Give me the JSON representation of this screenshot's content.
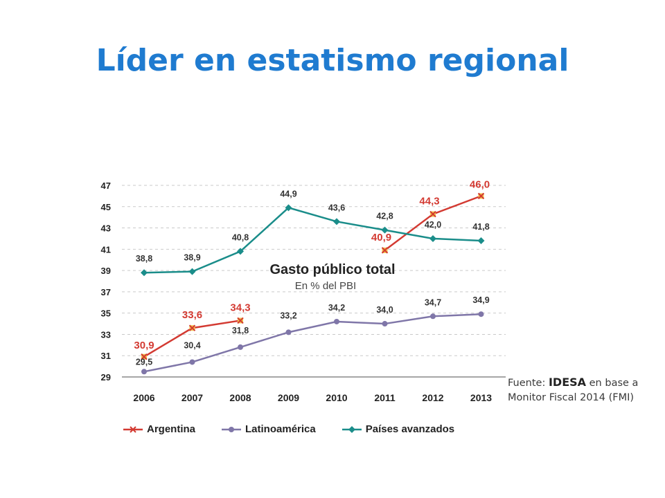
{
  "slide": {
    "title": "Líder en estatismo regional"
  },
  "source": {
    "label": "Fuente:",
    "org": "IDESA",
    "rest": "en base a Monitor Fiscal 2014 (FMI)"
  },
  "chart_data": {
    "type": "line",
    "title": "Gasto público total",
    "subtitle": "En % del PBI",
    "xlabel": "",
    "ylabel": "",
    "x": [
      "2006",
      "2007",
      "2008",
      "2009",
      "2010",
      "2011",
      "2012",
      "2013"
    ],
    "ylim": [
      29,
      47
    ],
    "yticks": [
      "29",
      "31",
      "33",
      "35",
      "37",
      "39",
      "41",
      "43",
      "45",
      "47"
    ],
    "grid": true,
    "legend_position": "bottom",
    "series": [
      {
        "name": "Argentina",
        "color": "#d33a32",
        "marker": "x",
        "values": [
          30.9,
          33.6,
          34.3,
          null,
          null,
          40.9,
          44.3,
          46.0
        ],
        "labels": [
          "30,9",
          "33,6",
          "34,3",
          "",
          "",
          "40,9",
          "44,3",
          "46,0"
        ]
      },
      {
        "name": "Latinoamérica",
        "color": "#7f76a8",
        "marker": "circle",
        "values": [
          29.5,
          30.4,
          31.8,
          33.2,
          34.2,
          34.0,
          34.7,
          34.9
        ],
        "labels": [
          "29,5",
          "30,4",
          "31,8",
          "33,2",
          "34,2",
          "34,0",
          "34,7",
          "34,9"
        ]
      },
      {
        "name": "Países avanzados",
        "color": "#1a8d8a",
        "marker": "diamond",
        "values": [
          38.8,
          38.9,
          40.8,
          44.9,
          43.6,
          42.8,
          42.0,
          41.8
        ],
        "labels": [
          "38,8",
          "38,9",
          "40,8",
          "44,9",
          "43,6",
          "42,8",
          "42,0",
          "41,8"
        ]
      }
    ]
  }
}
